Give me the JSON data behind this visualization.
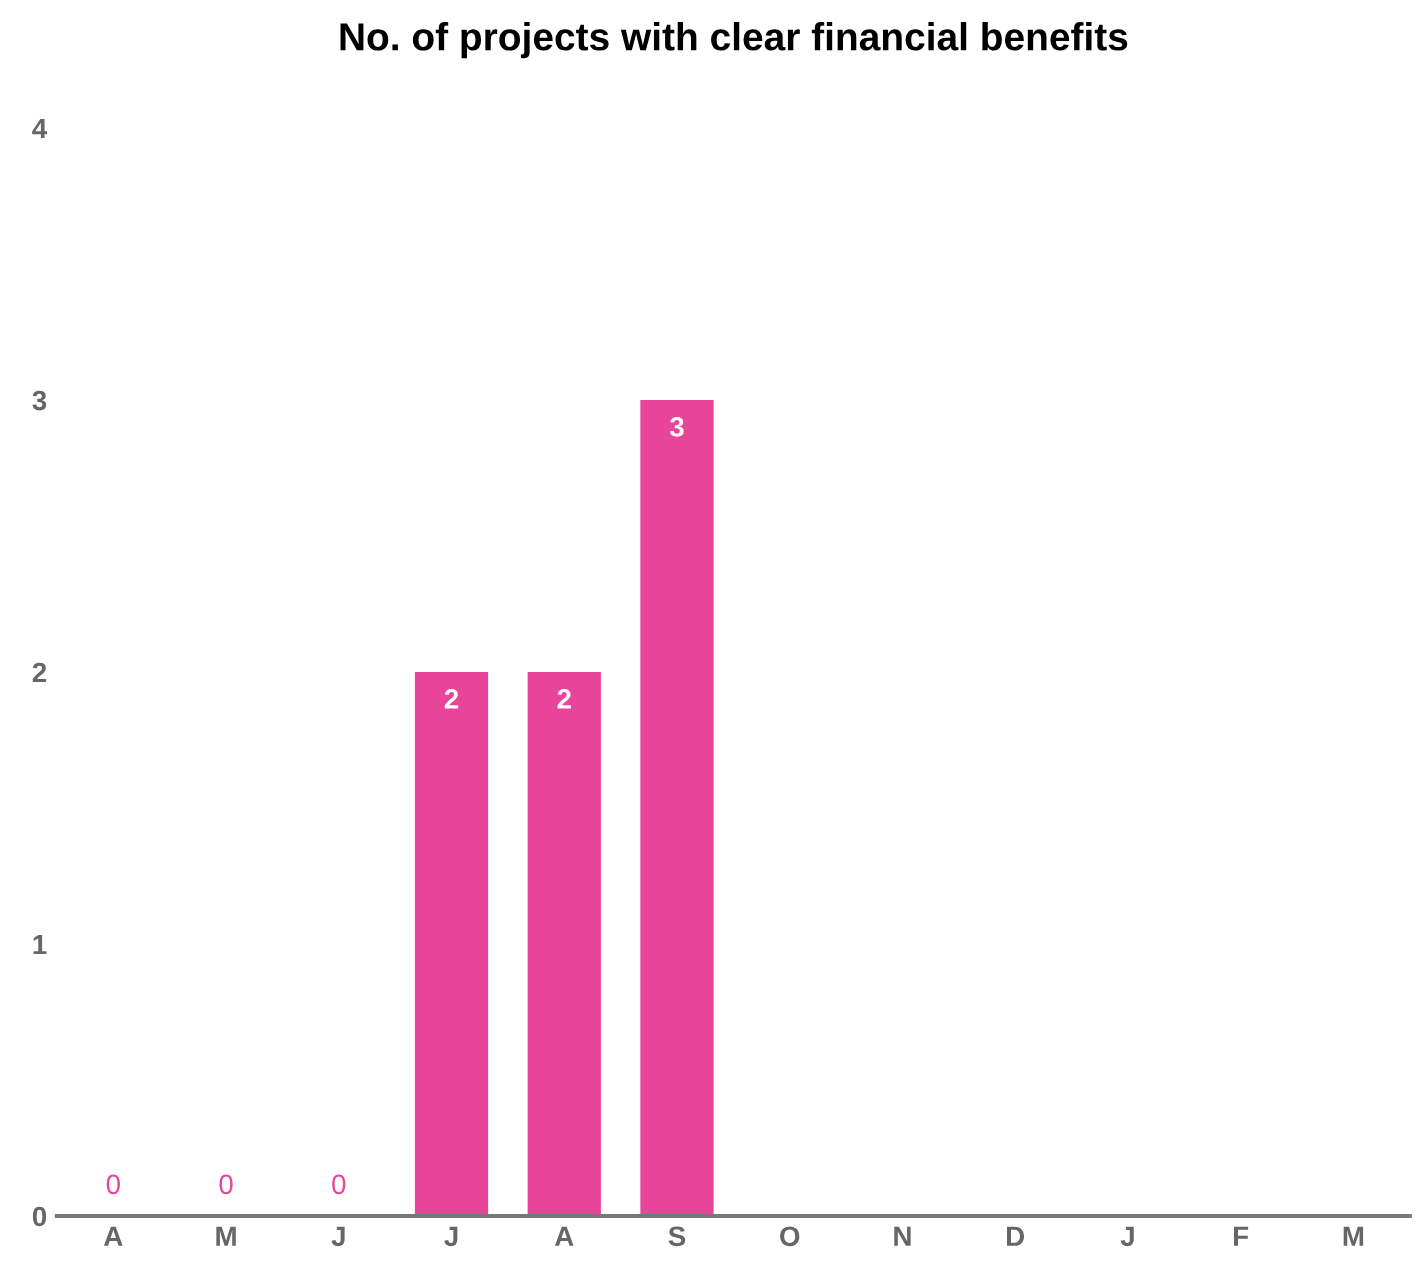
{
  "chart_data": {
    "type": "bar",
    "title": "No. of projects with clear financial benefits",
    "categories": [
      "A",
      "M",
      "J",
      "J",
      "A",
      "S",
      "O",
      "N",
      "D",
      "J",
      "F",
      "M"
    ],
    "values": [
      0,
      0,
      0,
      2,
      2,
      3,
      null,
      null,
      null,
      null,
      null,
      null
    ],
    "color": "#e8449a",
    "ylim": [
      0,
      4
    ],
    "yticks": [
      0,
      1,
      2,
      3,
      4
    ],
    "grid": false,
    "data_labels": true
  }
}
